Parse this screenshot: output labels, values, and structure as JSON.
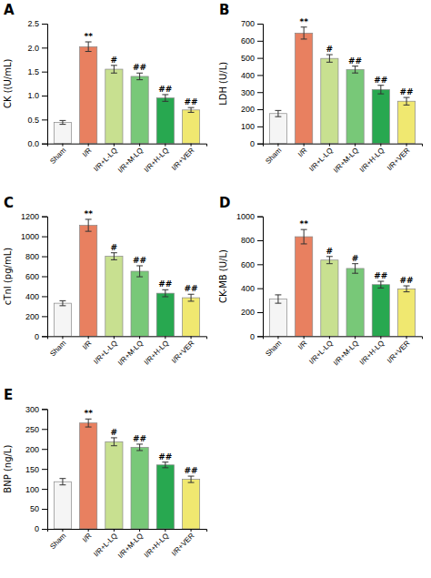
{
  "chart_data": [
    {
      "type": "bar",
      "title": "A",
      "ylabel": "CK ((U/mL)",
      "categories": [
        "Sham",
        "I/R",
        "I/R+L-LQ",
        "I/R+M-LQ",
        "I/R+H-LQ",
        "I/R+VER"
      ],
      "values": [
        0.44,
        2.02,
        1.55,
        1.4,
        0.95,
        0.7
      ],
      "errors": [
        0.04,
        0.1,
        0.08,
        0.07,
        0.07,
        0.05
      ],
      "colors": [
        "#f5f5f5",
        "#e88060",
        "#c8e090",
        "#78c878",
        "#28a850",
        "#f0e870"
      ],
      "ylim": [
        0,
        2.5
      ],
      "yticks": [
        {
          "value": 0,
          "label": "0.0"
        },
        0.5,
        {
          "value": 1,
          "label": "1.0"
        },
        1.5,
        {
          "value": 2,
          "label": "2.0"
        },
        2.5
      ],
      "grid": false,
      "annotations": [
        {
          "category": "I/R",
          "text": "**"
        },
        {
          "category": "I/R+L-LQ",
          "text": "#"
        },
        {
          "category": "I/R+M-LQ",
          "text": "##"
        },
        {
          "category": "I/R+H-LQ",
          "text": "##"
        },
        {
          "category": "I/R+VER",
          "text": "##"
        }
      ]
    },
    {
      "type": "bar",
      "title": "B",
      "ylabel": "LDH (U/L)",
      "categories": [
        "Sham",
        "I/R",
        "I/R+L-LQ",
        "I/R+M-LQ",
        "I/R+H-LQ",
        "I/R+VER"
      ],
      "values": [
        175,
        645,
        497,
        432,
        315,
        247
      ],
      "errors": [
        18,
        35,
        22,
        20,
        25,
        22
      ],
      "colors": [
        "#f5f5f5",
        "#e88060",
        "#c8e090",
        "#78c878",
        "#28a850",
        "#f0e870"
      ],
      "ylim": [
        0,
        700
      ],
      "yticks": [
        0,
        100,
        200,
        300,
        400,
        500,
        600,
        700
      ],
      "grid": false,
      "annotations": [
        {
          "category": "I/R",
          "text": "**"
        },
        {
          "category": "I/R+L-LQ",
          "text": "#"
        },
        {
          "category": "I/R+M-LQ",
          "text": "##"
        },
        {
          "category": "I/R+H-LQ",
          "text": "##"
        },
        {
          "category": "I/R+VER",
          "text": "##"
        }
      ]
    },
    {
      "type": "bar",
      "title": "C",
      "ylabel": "cTnI (pg/mL)",
      "categories": [
        "Sham",
        "I/R",
        "I/R+L-LQ",
        "I/R+M-LQ",
        "I/R+H-LQ",
        "I/R+VER"
      ],
      "values": [
        330,
        1110,
        800,
        650,
        430,
        385
      ],
      "errors": [
        25,
        60,
        35,
        55,
        35,
        35
      ],
      "colors": [
        "#f5f5f5",
        "#e88060",
        "#c8e090",
        "#78c878",
        "#28a850",
        "#f0e870"
      ],
      "ylim": [
        0,
        1200
      ],
      "yticks": [
        0,
        200,
        400,
        600,
        800,
        1000,
        1200
      ],
      "grid": false,
      "annotations": [
        {
          "category": "I/R",
          "text": "**"
        },
        {
          "category": "I/R+L-LQ",
          "text": "#"
        },
        {
          "category": "I/R+M-LQ",
          "text": "##"
        },
        {
          "category": "I/R+H-LQ",
          "text": "##"
        },
        {
          "category": "I/R+VER",
          "text": "##"
        }
      ]
    },
    {
      "type": "bar",
      "title": "D",
      "ylabel": "CK-MB (U/L)",
      "categories": [
        "Sham",
        "I/R",
        "I/R+L-LQ",
        "I/R+M-LQ",
        "I/R+H-LQ",
        "I/R+VER"
      ],
      "values": [
        310,
        830,
        635,
        565,
        430,
        395
      ],
      "errors": [
        35,
        60,
        30,
        40,
        28,
        25
      ],
      "colors": [
        "#f5f5f5",
        "#e88060",
        "#c8e090",
        "#78c878",
        "#28a850",
        "#f0e870"
      ],
      "ylim": [
        0,
        1000
      ],
      "yticks": [
        0,
        200,
        400,
        600,
        800,
        1000
      ],
      "grid": false,
      "annotations": [
        {
          "category": "I/R",
          "text": "**"
        },
        {
          "category": "I/R+L-LQ",
          "text": "#"
        },
        {
          "category": "I/R+M-LQ",
          "text": "#"
        },
        {
          "category": "I/R+H-LQ",
          "text": "##"
        },
        {
          "category": "I/R+VER",
          "text": "##"
        }
      ]
    },
    {
      "type": "bar",
      "title": "E",
      "ylabel": "BNP (ng/L)",
      "categories": [
        "Sham",
        "I/R",
        "I/R+L-LQ",
        "I/R+M-LQ",
        "I/R+H-LQ",
        "I/R+VER"
      ],
      "values": [
        118,
        265,
        218,
        204,
        160,
        124
      ],
      "errors": [
        8,
        10,
        10,
        8,
        7,
        8
      ],
      "colors": [
        "#f5f5f5",
        "#e88060",
        "#c8e090",
        "#78c878",
        "#28a850",
        "#f0e870"
      ],
      "ylim": [
        0,
        300
      ],
      "yticks": [
        0,
        50,
        100,
        150,
        200,
        250,
        300
      ],
      "grid": false,
      "annotations": [
        {
          "category": "I/R",
          "text": "**"
        },
        {
          "category": "I/R+L-LQ",
          "text": "#"
        },
        {
          "category": "I/R+M-LQ",
          "text": "##"
        },
        {
          "category": "I/R+H-LQ",
          "text": "##"
        },
        {
          "category": "I/R+VER",
          "text": "##"
        }
      ]
    }
  ]
}
